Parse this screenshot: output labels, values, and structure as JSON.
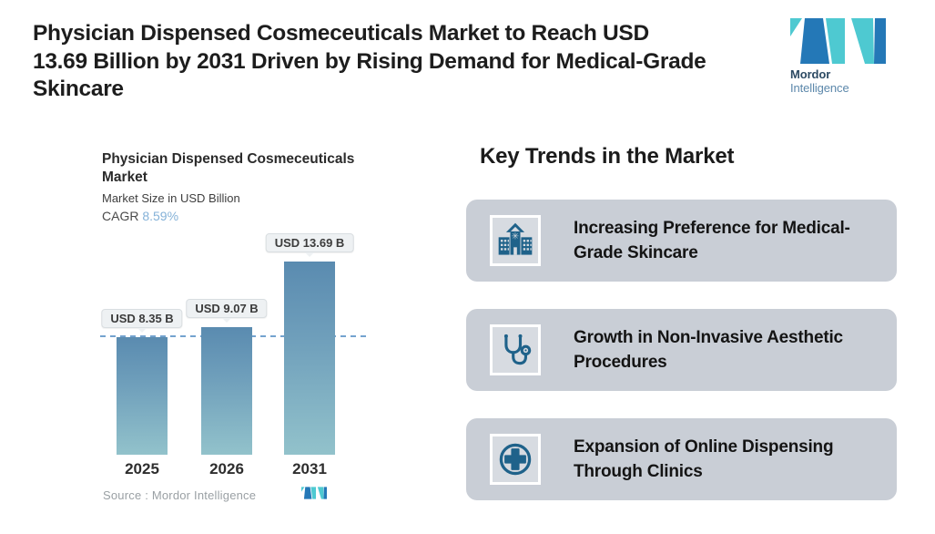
{
  "header": {
    "title_lines": [
      "Physician Dispensed Cosmeceuticals Market to Reach USD",
      "13.69 Billion by 2031 Driven by Rising Demand for Medical-Grade",
      "Skincare"
    ],
    "logo": {
      "word_bold": "Mordor",
      "word_light": "Intelligence"
    }
  },
  "chart": {
    "title": "Physician Dispensed Cosmeceuticals Market",
    "subtitle": "Market Size in USD Billion",
    "cagr_label": "CAGR ",
    "cagr_value": "8.59%",
    "source": "Source :  Mordor Intelligence"
  },
  "chart_data": {
    "type": "bar",
    "title": "Physician Dispensed Cosmeceuticals Market",
    "ylabel": "Market Size in USD Billion",
    "cagr": "8.59%",
    "categories": [
      "2025",
      "2026",
      "2031"
    ],
    "values": [
      8.35,
      9.07,
      13.69
    ],
    "bar_labels": [
      "USD 8.35 B",
      "USD 9.07 B",
      "USD 13.69 B"
    ],
    "ylim": [
      0,
      15
    ],
    "reference_line": 8.35,
    "gridlines": false,
    "legend": "none",
    "bar_gradient_top": "#5a8bb0",
    "bar_gradient_bottom": "#92c2cb",
    "reference_line_color": "#74a3cf"
  },
  "trends": {
    "heading": "Key Trends in the Market",
    "cards": [
      {
        "icon": "hospital-icon",
        "text": "Increasing Preference for Medical-Grade Skincare"
      },
      {
        "icon": "stethoscope-icon",
        "text": "Growth in Non-Invasive Aesthetic Procedures"
      },
      {
        "icon": "plus-circle-icon",
        "text": "Expansion of Online Dispensing Through Clinics"
      }
    ]
  },
  "colors": {
    "logo_teal": "#4ec9d1",
    "logo_blue": "#2478b7",
    "card_bg": "#c9ced6",
    "icon_blue": "#1f628a",
    "cagr_accent": "#85b2d8"
  }
}
